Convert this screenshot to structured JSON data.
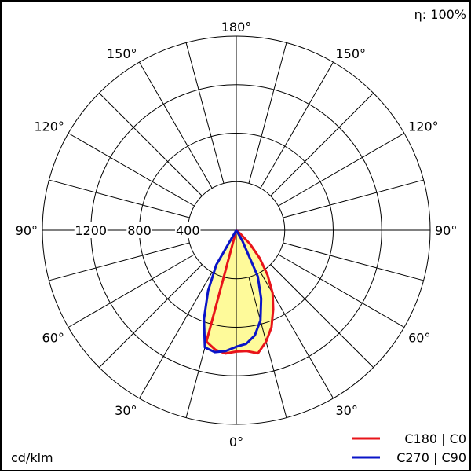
{
  "efficiency_label": "η: 100%",
  "unit_label": "cd/klm",
  "colors": {
    "c0_series": "#e8141a",
    "c90_series": "#0a14c8",
    "fill": "#fefa9a",
    "grid": "#000000"
  },
  "chart_data": {
    "type": "polar",
    "angle_labels": [
      {
        "text": "180°",
        "angle": 180,
        "side": "center"
      },
      {
        "text": "150°",
        "angle": 150,
        "side": "left"
      },
      {
        "text": "150°",
        "angle": 150,
        "side": "right"
      },
      {
        "text": "120°",
        "angle": 120,
        "side": "left"
      },
      {
        "text": "120°",
        "angle": 120,
        "side": "right"
      },
      {
        "text": "90°",
        "angle": 90,
        "side": "left"
      },
      {
        "text": "90°",
        "angle": 90,
        "side": "right"
      },
      {
        "text": "60°",
        "angle": 60,
        "side": "left"
      },
      {
        "text": "60°",
        "angle": 60,
        "side": "right"
      },
      {
        "text": "30°",
        "angle": 30,
        "side": "left"
      },
      {
        "text": "30°",
        "angle": 30,
        "side": "right"
      },
      {
        "text": "0°",
        "angle": 0,
        "side": "center"
      }
    ],
    "radial_ticks": [
      400,
      800,
      1200
    ],
    "radial_labels": [
      "400",
      "800",
      "1200"
    ],
    "r_max": 1600,
    "grid_circles": [
      400,
      800,
      1200,
      1600
    ],
    "spoke_step_deg": 15,
    "legend": {
      "position": "bottom-right"
    },
    "series": [
      {
        "name": "C180 | C0",
        "color": "#e8141a",
        "points": [
          {
            "angle": -15,
            "value": 950
          },
          {
            "angle": -10,
            "value": 1000
          },
          {
            "angle": -5,
            "value": 1020
          },
          {
            "angle": 0,
            "value": 1000
          },
          {
            "angle": 5,
            "value": 1000
          },
          {
            "angle": 10,
            "value": 1030
          },
          {
            "angle": 15,
            "value": 950
          },
          {
            "angle": 20,
            "value": 850
          },
          {
            "angle": 25,
            "value": 720
          },
          {
            "angle": 30,
            "value": 600
          },
          {
            "angle": 35,
            "value": 450
          },
          {
            "angle": 40,
            "value": 300
          },
          {
            "angle": 45,
            "value": 160
          },
          {
            "angle": 50,
            "value": 40
          }
        ]
      },
      {
        "name": "C270 | C90",
        "color": "#0a14c8",
        "points": [
          {
            "angle": -30,
            "value": 330
          },
          {
            "angle": -25,
            "value": 550
          },
          {
            "angle": -20,
            "value": 780
          },
          {
            "angle": -15,
            "value": 1000
          },
          {
            "angle": -10,
            "value": 1020
          },
          {
            "angle": -5,
            "value": 1000
          },
          {
            "angle": 0,
            "value": 960
          },
          {
            "angle": 5,
            "value": 940
          },
          {
            "angle": 10,
            "value": 880
          },
          {
            "angle": 15,
            "value": 770
          },
          {
            "angle": 20,
            "value": 600
          },
          {
            "angle": 25,
            "value": 420
          },
          {
            "angle": 30,
            "value": 100
          }
        ]
      }
    ]
  }
}
